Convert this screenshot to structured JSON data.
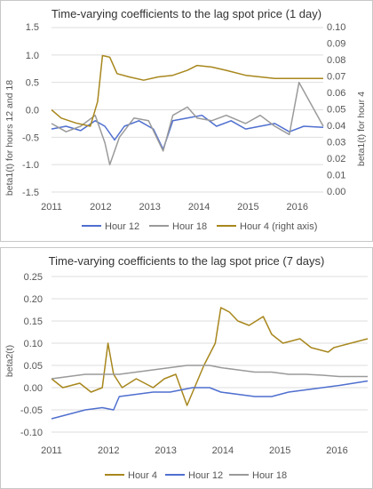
{
  "colors": {
    "hour12": "#4f6fcf",
    "hour18": "#9a9a9a",
    "hour4": "#a8871d",
    "grid": "#dedede",
    "axis_text": "#555555",
    "border": "#c8c8c8"
  },
  "chart_data": [
    {
      "type": "line",
      "title": "Time-varying coefficients to the lag spot price (1 day)",
      "ylabel": "beta1(t) for hours 12 and 18",
      "y2label": "beta1(t) for hour 4",
      "xlim": [
        2011,
        2016.6
      ],
      "ylim": [
        -1.5,
        1.5
      ],
      "y2lim": [
        0.0,
        0.1
      ],
      "xticks": [
        "2011",
        "2012",
        "2013",
        "2014",
        "2015",
        "2016"
      ],
      "yticks": [
        "-1.5",
        "-1.0",
        "-0.5",
        "0.0",
        "0.5",
        "1.0",
        "1.5"
      ],
      "y2ticks": [
        "0.00",
        "0.01",
        "0.02",
        "0.03",
        "0.04",
        "0.05",
        "0.06",
        "0.07",
        "0.08",
        "0.09",
        "0.10"
      ],
      "legend": [
        "Hour 12",
        "Hour 18",
        "Hour 4 (right axis)"
      ],
      "legend_position": "bottom",
      "grid": true,
      "series": [
        {
          "name": "Hour 12",
          "axis": "left",
          "x": [
            2011.0,
            2011.3,
            2011.6,
            2011.9,
            2012.1,
            2012.3,
            2012.5,
            2012.8,
            2013.1,
            2013.3,
            2013.5,
            2013.8,
            2014.1,
            2014.4,
            2014.7,
            2015.0,
            2015.3,
            2015.6,
            2015.9,
            2016.2,
            2016.6
          ],
          "y": [
            -0.35,
            -0.3,
            -0.38,
            -0.2,
            -0.3,
            -0.55,
            -0.3,
            -0.2,
            -0.35,
            -0.72,
            -0.2,
            -0.15,
            -0.1,
            -0.3,
            -0.2,
            -0.35,
            -0.3,
            -0.25,
            -0.4,
            -0.3,
            -0.32
          ]
        },
        {
          "name": "Hour 18",
          "axis": "left",
          "x": [
            2011.0,
            2011.3,
            2011.6,
            2011.9,
            2012.1,
            2012.2,
            2012.4,
            2012.7,
            2013.0,
            2013.3,
            2013.5,
            2013.8,
            2014.0,
            2014.3,
            2014.6,
            2015.0,
            2015.3,
            2015.6,
            2015.9,
            2016.1,
            2016.6
          ],
          "y": [
            -0.25,
            -0.4,
            -0.3,
            -0.1,
            -0.6,
            -1.0,
            -0.5,
            -0.15,
            -0.2,
            -0.75,
            -0.1,
            0.05,
            -0.15,
            -0.2,
            -0.1,
            -0.25,
            -0.1,
            -0.3,
            -0.45,
            0.5,
            -0.3
          ]
        },
        {
          "name": "Hour 4",
          "axis": "right",
          "x": [
            2011.0,
            2011.2,
            2011.5,
            2011.8,
            2011.95,
            2012.05,
            2012.2,
            2012.35,
            2012.6,
            2012.9,
            2013.2,
            2013.5,
            2013.8,
            2014.0,
            2014.3,
            2014.6,
            2015.0,
            2015.3,
            2015.6,
            2016.0,
            2016.3,
            2016.6
          ],
          "y": [
            0.05,
            0.045,
            0.042,
            0.04,
            0.055,
            0.083,
            0.082,
            0.072,
            0.07,
            0.068,
            0.07,
            0.071,
            0.074,
            0.077,
            0.076,
            0.074,
            0.071,
            0.07,
            0.069,
            0.069,
            0.069,
            0.069
          ]
        }
      ]
    },
    {
      "type": "line",
      "title": "Time-varying coefficients to the lag spot price (7 days)",
      "ylabel": "beta2(t)",
      "xlim": [
        2011,
        2016.6
      ],
      "ylim": [
        -0.1,
        0.25
      ],
      "xticks": [
        "2011",
        "2012",
        "2013",
        "2014",
        "2015",
        "2016"
      ],
      "yticks": [
        "-0.10",
        "-0.05",
        "0.00",
        "0.05",
        "0.10",
        "0.15",
        "0.20",
        "0.25"
      ],
      "legend": [
        "Hour 4",
        "Hour 12",
        "Hour 18"
      ],
      "legend_position": "bottom",
      "grid": true,
      "series": [
        {
          "name": "Hour 4",
          "x": [
            2011.0,
            2011.2,
            2011.5,
            2011.7,
            2011.9,
            2012.0,
            2012.1,
            2012.25,
            2012.5,
            2012.8,
            2013.0,
            2013.2,
            2013.4,
            2013.7,
            2013.9,
            2014.0,
            2014.15,
            2014.3,
            2014.5,
            2014.75,
            2014.9,
            2015.1,
            2015.4,
            2015.6,
            2015.9,
            2016.0,
            2016.3,
            2016.6
          ],
          "y": [
            0.02,
            0.0,
            0.01,
            -0.01,
            0.0,
            0.1,
            0.03,
            0.0,
            0.02,
            0.0,
            0.02,
            0.03,
            -0.04,
            0.05,
            0.1,
            0.18,
            0.17,
            0.15,
            0.14,
            0.16,
            0.12,
            0.1,
            0.11,
            0.09,
            0.08,
            0.09,
            0.1,
            0.11
          ]
        },
        {
          "name": "Hour 12",
          "x": [
            2011.0,
            2011.3,
            2011.6,
            2011.9,
            2012.1,
            2012.2,
            2012.5,
            2012.8,
            2013.1,
            2013.5,
            2013.8,
            2014.0,
            2014.3,
            2014.6,
            2014.9,
            2015.2,
            2015.5,
            2015.8,
            2016.1,
            2016.6
          ],
          "y": [
            -0.07,
            -0.06,
            -0.05,
            -0.045,
            -0.05,
            -0.02,
            -0.015,
            -0.01,
            -0.01,
            0.0,
            0.0,
            -0.01,
            -0.015,
            -0.02,
            -0.02,
            -0.01,
            -0.005,
            0.0,
            0.005,
            0.015
          ]
        },
        {
          "name": "Hour 18",
          "x": [
            2011.0,
            2011.3,
            2011.6,
            2011.9,
            2012.2,
            2012.5,
            2012.8,
            2013.1,
            2013.4,
            2013.8,
            2014.0,
            2014.3,
            2014.6,
            2014.9,
            2015.2,
            2015.5,
            2015.8,
            2016.1,
            2016.6
          ],
          "y": [
            0.02,
            0.025,
            0.03,
            0.03,
            0.03,
            0.035,
            0.04,
            0.045,
            0.05,
            0.05,
            0.045,
            0.04,
            0.035,
            0.035,
            0.03,
            0.03,
            0.028,
            0.025,
            0.025
          ]
        }
      ]
    }
  ]
}
